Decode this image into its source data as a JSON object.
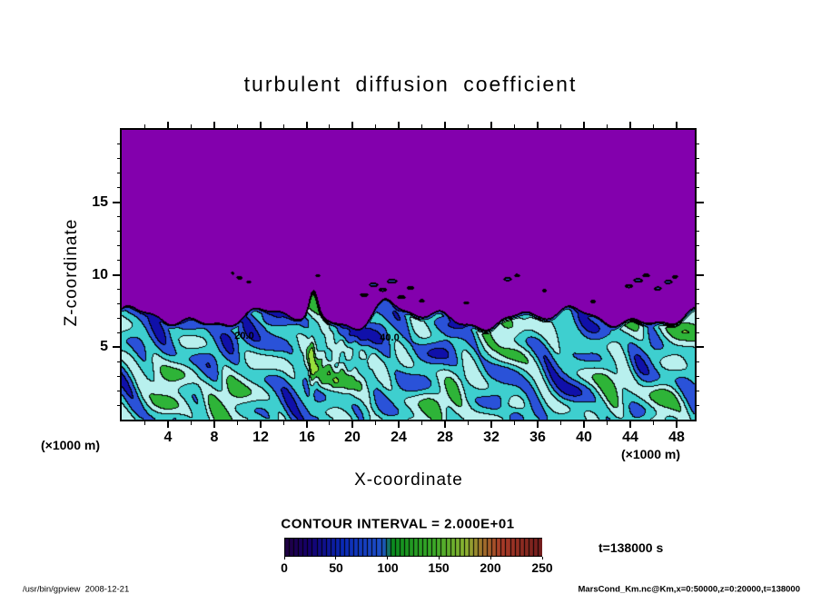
{
  "title": "turbulent diffusion coefficient",
  "axes": {
    "xlabel": "X-coordinate",
    "ylabel": "Z-coordinate",
    "x_unit_label": "(×1000 m)",
    "z_unit_label": "(×1000 m)",
    "x_tick_labels": [
      4,
      8,
      12,
      16,
      20,
      24,
      28,
      32,
      36,
      40,
      44,
      48
    ],
    "z_tick_labels": [
      5,
      10,
      15
    ]
  },
  "contour": {
    "interval": 20,
    "interval_label": "CONTOUR INTERVAL = 2.000E+01",
    "labels": [
      {
        "text": "20.0",
        "x": 10.6,
        "z": 5.75
      },
      {
        "text": "40.0",
        "x": 23.2,
        "z": 5.65
      }
    ]
  },
  "colorbar": {
    "min": 0,
    "max": 250,
    "tick_labels": [
      0,
      50,
      100,
      150,
      200,
      250
    ],
    "segments": 56
  },
  "time_label": "t=138000 s",
  "footer": {
    "left": "/usr/bin/gpview  2008-12-21",
    "right": "MarsCond_Km.nc@Km,x=0:50000,z=0:20000,t=138000"
  },
  "colors": {
    "background_purple": "#8300ad",
    "contour_line": "#000000",
    "field_bands": [
      "#1010aa",
      "#2a52d8",
      "#3ecfcf",
      "#b8f0ee",
      "#2eb438",
      "#97e03c",
      "#e8e84a"
    ],
    "colorbar_stops": [
      [
        0.0,
        "#200040"
      ],
      [
        0.1,
        "#14006e"
      ],
      [
        0.22,
        "#0a28b4"
      ],
      [
        0.38,
        "#1e50c8"
      ],
      [
        0.42,
        "#0c8c1e"
      ],
      [
        0.58,
        "#3caa28"
      ],
      [
        0.7,
        "#8cb432"
      ],
      [
        0.76,
        "#a0782d"
      ],
      [
        0.84,
        "#aa3c28"
      ],
      [
        1.0,
        "#701c1c"
      ]
    ]
  },
  "chart_data": {
    "type": "heatmap",
    "title": "turbulent diffusion coefficient",
    "xlabel": "X-coordinate",
    "ylabel": "Z-coordinate",
    "x_units": "×1000 m",
    "z_units": "×1000 m",
    "x_range": [
      0,
      50
    ],
    "z_range": [
      0,
      20
    ],
    "x_ticks": [
      4,
      8,
      12,
      16,
      20,
      24,
      28,
      32,
      36,
      40,
      44,
      48
    ],
    "z_ticks": [
      5,
      10,
      15
    ],
    "contour_interval": 20,
    "contour_interval_scientific": "2.000E+01",
    "visible_contour_labels": [
      20.0,
      40.0
    ],
    "colorbar_range": [
      0,
      250
    ],
    "colorbar_ticks": [
      0,
      50,
      100,
      150,
      200,
      250
    ],
    "time_seconds": 138000,
    "time_label": "t=138000 s",
    "boundary_layer_top": 7,
    "field_value_range_in_turbulent_layer": [
      0,
      120
    ],
    "description": "Tone/contour plot of a turbulent diffusion coefficient (Km) field: a uniform low-value purple region above a convective boundary-layer top near z≈7 (×1000 m); below it a turbulent layer of cellular blue/cyan/green structures with values roughly 0–100, outlined by black contour lines every 20. Small detached closed contours (specks) float near z≈8–10."
  }
}
